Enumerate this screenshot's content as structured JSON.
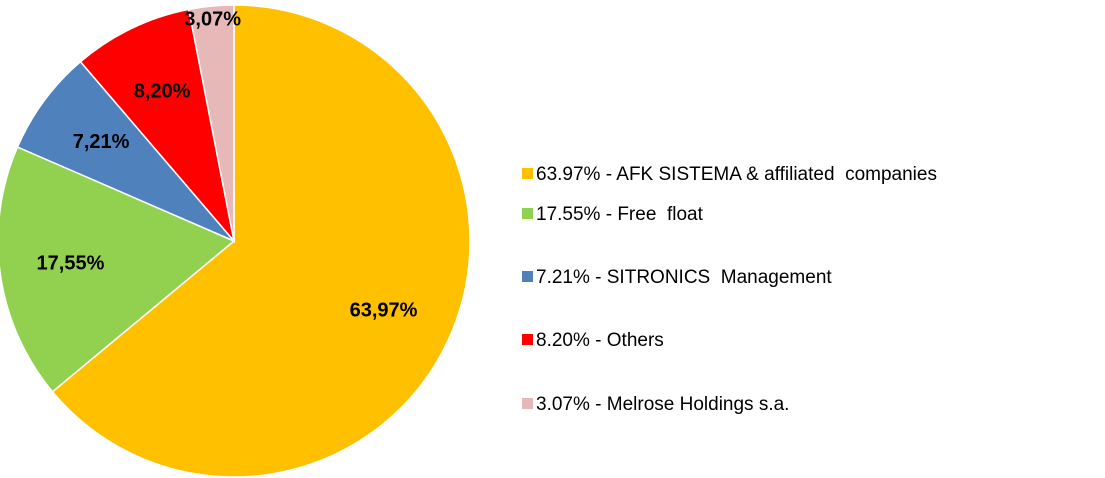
{
  "chart_data": {
    "type": "pie",
    "categories": [
      "63.97% - AFK SISTEMA & affiliated  companies",
      "17.55% - Free  float",
      "7.21% - SITRONICS  Management",
      "8.20% - Others",
      "3.07% - Melrose Holdings s.a."
    ],
    "values": [
      63.97,
      17.55,
      7.21,
      8.2,
      3.07
    ],
    "value_labels": [
      "63,97%",
      "17,55%",
      "7,21%",
      "8,20%",
      "3,07%"
    ],
    "colors": [
      "#ffc000",
      "#92d050",
      "#4f81bd",
      "#ff0000",
      "#e6b9b8"
    ],
    "legend": "right"
  }
}
